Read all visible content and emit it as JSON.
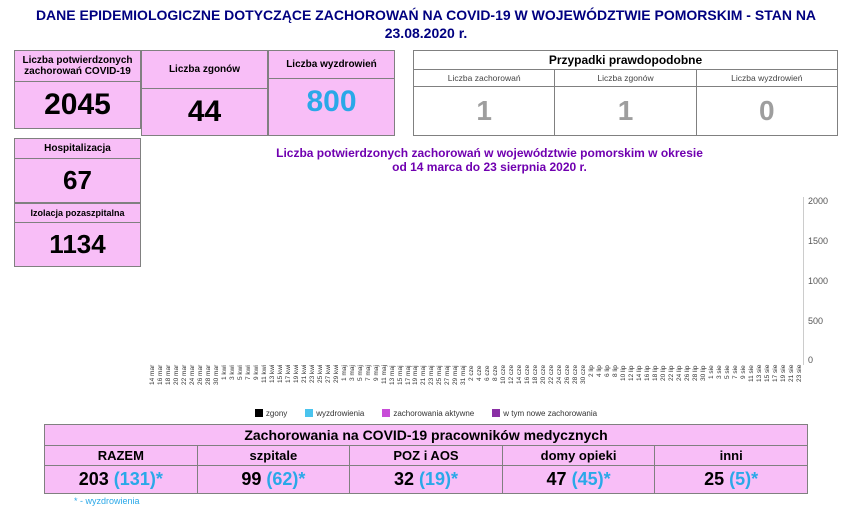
{
  "title": "DANE EPIDEMIOLOGICZNE DOTYCZĄCE ZACHOROWAŃ NA COVID-19 W WOJEWÓDZTWIE POMORSKIM - STAN NA 23.08.2020 r.",
  "main_stats": {
    "confirmed": {
      "label": "Liczba potwierdzonych zachorowań COVID-19",
      "value": "2045"
    },
    "deaths": {
      "label": "Liczba zgonów",
      "value": "44"
    },
    "recovered": {
      "label": "Liczba wyzdrowień",
      "value": "800"
    },
    "hospital": {
      "label": "Hospitalizacja",
      "value": "67"
    },
    "isolation": {
      "label": "Izolacja pozaszpitalna",
      "value": "1134"
    }
  },
  "probable": {
    "title": "Przypadki prawdopodobne",
    "cases": {
      "label": "Liczba zachorowań",
      "value": "1"
    },
    "deaths": {
      "label": "Liczba zgonów",
      "value": "1"
    },
    "recovered": {
      "label": "Liczba wyzdrowień",
      "value": "0"
    }
  },
  "chart": {
    "caption_l1": "Liczba potwierdzonych zachorowań w województwie pomorskim w okresie",
    "caption_l2": "od 14 marca do 23 sierpnia 2020 r.",
    "ymax": 2100,
    "yticks": [
      "2000",
      "1500",
      "1000",
      "500",
      "0"
    ],
    "colors": {
      "top": "#c84cd8",
      "bottom": "#4ac4ee",
      "bg": "#ffffff"
    },
    "legend": {
      "deaths": "zgony",
      "recov": "wyzdrowienia",
      "active": "zachorowania aktywne",
      "new": "w tym nowe zachorowania"
    },
    "series": [
      {
        "x": "14 mar",
        "b": 0,
        "t": 5
      },
      {
        "x": "16 mar",
        "b": 0,
        "t": 10
      },
      {
        "x": "18 mar",
        "b": 0,
        "t": 15
      },
      {
        "x": "20 mar",
        "b": 0,
        "t": 20
      },
      {
        "x": "22 mar",
        "b": 0,
        "t": 30
      },
      {
        "x": "24 mar",
        "b": 0,
        "t": 40
      },
      {
        "x": "26 mar",
        "b": 0,
        "t": 50
      },
      {
        "x": "28 mar",
        "b": 0,
        "t": 60
      },
      {
        "x": "30 mar",
        "b": 0,
        "t": 70
      },
      {
        "x": "1 kwi",
        "b": 5,
        "t": 80
      },
      {
        "x": "3 kwi",
        "b": 10,
        "t": 95
      },
      {
        "x": "5 kwi",
        "b": 15,
        "t": 110
      },
      {
        "x": "7 kwi",
        "b": 20,
        "t": 125
      },
      {
        "x": "9 kwi",
        "b": 25,
        "t": 140
      },
      {
        "x": "11 kwi",
        "b": 30,
        "t": 155
      },
      {
        "x": "13 kwi",
        "b": 35,
        "t": 175
      },
      {
        "x": "15 kwi",
        "b": 40,
        "t": 195
      },
      {
        "x": "17 kwi",
        "b": 50,
        "t": 215
      },
      {
        "x": "19 kwi",
        "b": 60,
        "t": 240
      },
      {
        "x": "21 kwi",
        "b": 70,
        "t": 270
      },
      {
        "x": "23 kwi",
        "b": 80,
        "t": 300
      },
      {
        "x": "25 kwi",
        "b": 95,
        "t": 335
      },
      {
        "x": "27 kwi",
        "b": 110,
        "t": 370
      },
      {
        "x": "29 kwi",
        "b": 125,
        "t": 400
      },
      {
        "x": "1 maj",
        "b": 140,
        "t": 420
      },
      {
        "x": "3 maj",
        "b": 160,
        "t": 435
      },
      {
        "x": "5 maj",
        "b": 180,
        "t": 445
      },
      {
        "x": "7 maj",
        "b": 200,
        "t": 455
      },
      {
        "x": "9 maj",
        "b": 220,
        "t": 465
      },
      {
        "x": "11 maj",
        "b": 240,
        "t": 475
      },
      {
        "x": "13 maj",
        "b": 260,
        "t": 485
      },
      {
        "x": "15 maj",
        "b": 280,
        "t": 495
      },
      {
        "x": "17 maj",
        "b": 300,
        "t": 500
      },
      {
        "x": "19 maj",
        "b": 320,
        "t": 505
      },
      {
        "x": "21 maj",
        "b": 335,
        "t": 510
      },
      {
        "x": "23 maj",
        "b": 350,
        "t": 515
      },
      {
        "x": "25 maj",
        "b": 365,
        "t": 520
      },
      {
        "x": "27 maj",
        "b": 375,
        "t": 525
      },
      {
        "x": "29 maj",
        "b": 385,
        "t": 530
      },
      {
        "x": "31 maj",
        "b": 395,
        "t": 535
      },
      {
        "x": "2 cze",
        "b": 405,
        "t": 540
      },
      {
        "x": "4 cze",
        "b": 415,
        "t": 545
      },
      {
        "x": "6 cze",
        "b": 425,
        "t": 550
      },
      {
        "x": "8 cze",
        "b": 430,
        "t": 555
      },
      {
        "x": "10 cze",
        "b": 435,
        "t": 560
      },
      {
        "x": "12 cze",
        "b": 440,
        "t": 565
      },
      {
        "x": "14 cze",
        "b": 445,
        "t": 570
      },
      {
        "x": "16 cze",
        "b": 450,
        "t": 575
      },
      {
        "x": "18 cze",
        "b": 455,
        "t": 580
      },
      {
        "x": "20 cze",
        "b": 460,
        "t": 585
      },
      {
        "x": "22 cze",
        "b": 465,
        "t": 590
      },
      {
        "x": "24 cze",
        "b": 470,
        "t": 595
      },
      {
        "x": "26 cze",
        "b": 475,
        "t": 600
      },
      {
        "x": "28 cze",
        "b": 480,
        "t": 605
      },
      {
        "x": "30 cze",
        "b": 485,
        "t": 610
      },
      {
        "x": "2 lip",
        "b": 490,
        "t": 620
      },
      {
        "x": "4 lip",
        "b": 495,
        "t": 630
      },
      {
        "x": "6 lip",
        "b": 500,
        "t": 645
      },
      {
        "x": "8 lip",
        "b": 505,
        "t": 660
      },
      {
        "x": "10 lip",
        "b": 510,
        "t": 680
      },
      {
        "x": "12 lip",
        "b": 515,
        "t": 700
      },
      {
        "x": "14 lip",
        "b": 520,
        "t": 730
      },
      {
        "x": "16 lip",
        "b": 530,
        "t": 760
      },
      {
        "x": "18 lip",
        "b": 540,
        "t": 800
      },
      {
        "x": "20 lip",
        "b": 555,
        "t": 850
      },
      {
        "x": "22 lip",
        "b": 570,
        "t": 900
      },
      {
        "x": "24 lip",
        "b": 585,
        "t": 960
      },
      {
        "x": "26 lip",
        "b": 600,
        "t": 1020
      },
      {
        "x": "28 lip",
        "b": 620,
        "t": 1090
      },
      {
        "x": "30 lip",
        "b": 640,
        "t": 1160
      },
      {
        "x": "1 sie",
        "b": 655,
        "t": 1240
      },
      {
        "x": "3 sie",
        "b": 670,
        "t": 1320
      },
      {
        "x": "5 sie",
        "b": 685,
        "t": 1400
      },
      {
        "x": "7 sie",
        "b": 700,
        "t": 1480
      },
      {
        "x": "9 sie",
        "b": 715,
        "t": 1560
      },
      {
        "x": "11 sie",
        "b": 730,
        "t": 1640
      },
      {
        "x": "13 sie",
        "b": 745,
        "t": 1720
      },
      {
        "x": "15 sie",
        "b": 760,
        "t": 1800
      },
      {
        "x": "17 sie",
        "b": 770,
        "t": 1870
      },
      {
        "x": "19 sie",
        "b": 780,
        "t": 1930
      },
      {
        "x": "21 sie",
        "b": 790,
        "t": 1990
      },
      {
        "x": "23 sie",
        "b": 800,
        "t": 2045
      }
    ]
  },
  "workers": {
    "title": "Zachorowania na COVID-19 pracowników medycznych",
    "footnote": "* - wyzdrowienia",
    "cols": [
      {
        "h": "RAZEM",
        "v": "203",
        "r": "(131)*"
      },
      {
        "h": "szpitale",
        "v": "99",
        "r": "(62)*"
      },
      {
        "h": "POZ i AOS",
        "v": "32",
        "r": "(19)*"
      },
      {
        "h": "domy opieki",
        "v": "47",
        "r": "(45)*"
      },
      {
        "h": "inni",
        "v": "25",
        "r": "(5)*"
      }
    ]
  }
}
